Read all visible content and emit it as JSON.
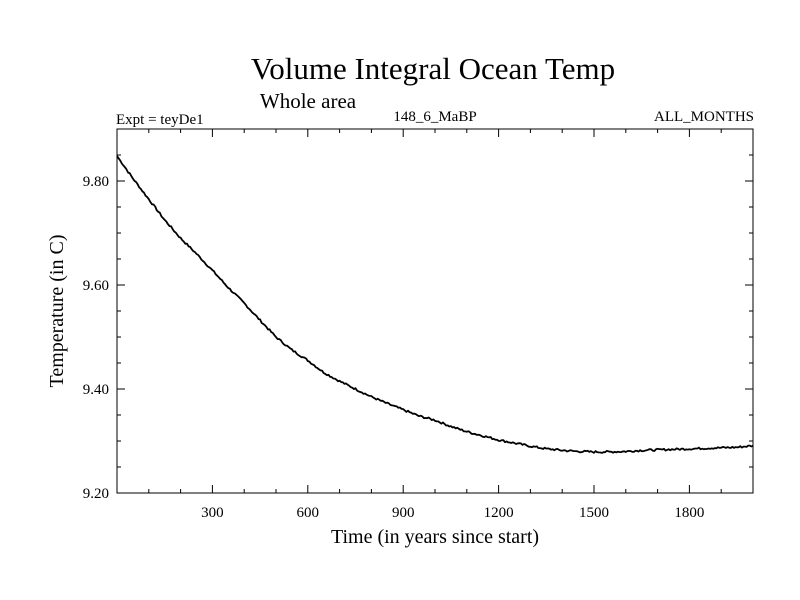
{
  "colors": {
    "background": "#ffffff",
    "foreground": "#000000"
  },
  "chart_data": {
    "type": "line",
    "title": "Volume Integral Ocean Temp",
    "subtitle": "Whole area",
    "header_left": "Expt = teyDe1",
    "header_center": "148_6_MaBP",
    "header_right": "ALL_MONTHS",
    "xlabel": "Time (in years since start)",
    "ylabel": "Temperature (in C)",
    "xlim": [
      0,
      2000
    ],
    "ylim": [
      9.2,
      9.9
    ],
    "x_ticks": [
      300,
      600,
      900,
      1200,
      1500,
      1800
    ],
    "x_tick_labels": [
      "300",
      "600",
      "900",
      "1200",
      "1500",
      "1800"
    ],
    "y_ticks": [
      9.2,
      9.4,
      9.6,
      9.8
    ],
    "y_tick_labels": [
      "9.20",
      "9.40",
      "9.60",
      "9.80"
    ],
    "grid": false,
    "series": [
      {
        "name": "Volume Integral Ocean Temp",
        "x": [
          0,
          50,
          100,
          150,
          200,
          250,
          300,
          350,
          400,
          450,
          500,
          550,
          600,
          650,
          700,
          750,
          800,
          850,
          900,
          950,
          1000,
          1050,
          1100,
          1150,
          1200,
          1250,
          1300,
          1350,
          1400,
          1450,
          1500,
          1550,
          1600,
          1650,
          1700,
          1750,
          1800,
          1850,
          1900,
          1950,
          2000
        ],
        "values": [
          9.848,
          9.805,
          9.765,
          9.725,
          9.69,
          9.66,
          9.628,
          9.595,
          9.565,
          9.532,
          9.5,
          9.475,
          9.455,
          9.432,
          9.415,
          9.4,
          9.385,
          9.372,
          9.36,
          9.348,
          9.34,
          9.328,
          9.318,
          9.31,
          9.302,
          9.296,
          9.29,
          9.285,
          9.282,
          9.28,
          9.279,
          9.279,
          9.28,
          9.282,
          9.283,
          9.284,
          9.285,
          9.286,
          9.287,
          9.288,
          9.291
        ]
      }
    ]
  }
}
